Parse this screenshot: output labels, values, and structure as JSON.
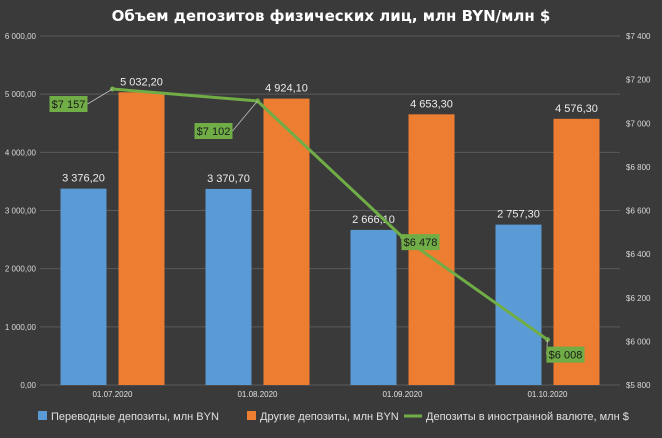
{
  "chart_data": {
    "type": "bar+line",
    "title": "Объем депозитов физических лиц, млн BYN/млн $",
    "categories": [
      "01.07.2020",
      "01.08.2020",
      "01.09.2020",
      "01.10.2020"
    ],
    "series": [
      {
        "name": "Переводные депозиты, млн BYN",
        "type": "bar",
        "axis": "left",
        "values": [
          3376.2,
          3370.7,
          2666.1,
          2757.3
        ],
        "labels": [
          "3 376,20",
          "3 370,70",
          "2 666,10",
          "2 757,30"
        ],
        "color": "#5b9bd5"
      },
      {
        "name": "Другие депозиты, млн BYN",
        "type": "bar",
        "axis": "left",
        "values": [
          5032.2,
          4924.1,
          4653.3,
          4576.3
        ],
        "labels": [
          "5 032,20",
          "4 924,10",
          "4 653,30",
          "4 576,30"
        ],
        "color": "#ed7d31"
      },
      {
        "name": "Депозиты в иностранной валюте, млн $",
        "type": "line",
        "axis": "right",
        "values": [
          7157,
          7102,
          6478,
          6008
        ],
        "labels": [
          "$7 157",
          "$7 102",
          "$6 478",
          "$6 008"
        ],
        "color": "#70ad47"
      }
    ],
    "y_left": {
      "ylim": [
        0,
        6000
      ],
      "ticks": [
        0,
        1000,
        2000,
        3000,
        4000,
        5000,
        6000
      ],
      "tick_labels": [
        "0,00",
        "1 000,00",
        "2 000,00",
        "3 000,00",
        "4 000,00",
        "5 000,00",
        "6 000,00"
      ]
    },
    "y_right": {
      "ylim": [
        5800,
        7400
      ],
      "ticks": [
        5800,
        6000,
        6200,
        6400,
        6600,
        6800,
        7000,
        7200,
        7400
      ],
      "tick_labels": [
        "$5 800",
        "$6 000",
        "$6 200",
        "$6 400",
        "$6 600",
        "$6 800",
        "$7 000",
        "$7 200",
        "$7 400"
      ]
    },
    "grid": true,
    "legend": "bottom"
  }
}
